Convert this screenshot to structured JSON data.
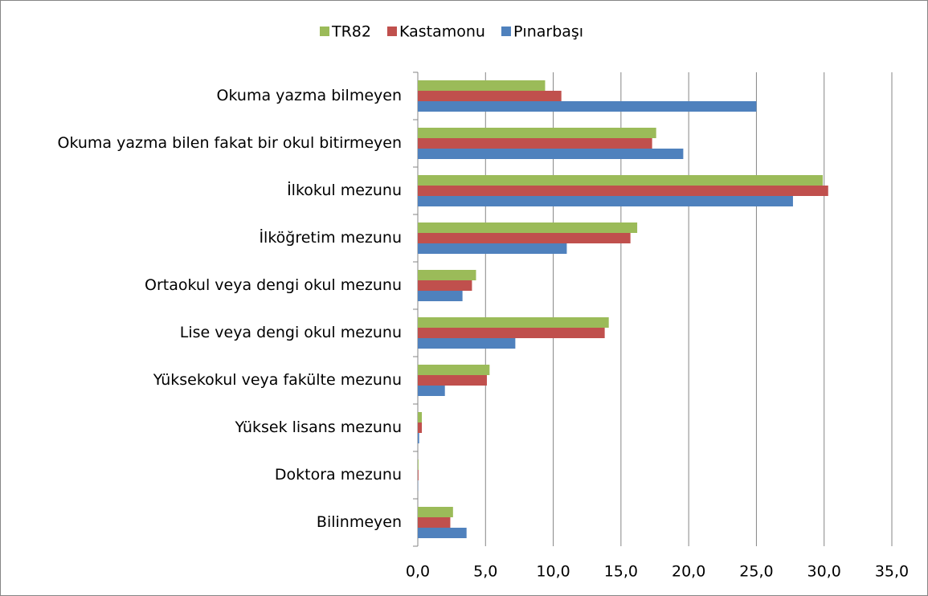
{
  "chart_data": {
    "type": "bar",
    "orientation": "horizontal",
    "categories": [
      "Okuma yazma bilmeyen",
      "Okuma yazma bilen fakat bir okul bitirmeyen",
      "İlkokul mezunu",
      "İlköğretim mezunu",
      "Ortaokul veya dengi okul mezunu",
      "Lise veya dengi okul mezunu",
      "Yüksekokul veya fakülte mezunu",
      "Yüksek lisans mezunu",
      "Doktora mezunu",
      "Bilinmeyen"
    ],
    "series": [
      {
        "name": "TR82",
        "color": "#9bbb59",
        "values": [
          9.4,
          17.6,
          29.9,
          16.2,
          4.3,
          14.1,
          5.3,
          0.3,
          0.05,
          2.6
        ]
      },
      {
        "name": "Kastamonu",
        "color": "#c0504d",
        "values": [
          10.6,
          17.3,
          30.3,
          15.7,
          4.0,
          13.8,
          5.1,
          0.3,
          0.05,
          2.4
        ]
      },
      {
        "name": "Pınarbaşı",
        "color": "#4f81bd",
        "values": [
          25.0,
          19.6,
          27.7,
          11.0,
          3.3,
          7.2,
          2.0,
          0.1,
          0.02,
          3.6
        ]
      }
    ],
    "xlim": [
      0,
      35
    ],
    "xticks": [
      {
        "value": 0,
        "label": "0,0"
      },
      {
        "value": 5,
        "label": "5,0"
      },
      {
        "value": 10,
        "label": "10,0"
      },
      {
        "value": 15,
        "label": "15,0"
      },
      {
        "value": 20,
        "label": "20,0"
      },
      {
        "value": 25,
        "label": "25,0"
      },
      {
        "value": 30,
        "label": "30,0"
      },
      {
        "value": 35,
        "label": "35,0"
      }
    ],
    "grid": true,
    "legend": "top"
  }
}
